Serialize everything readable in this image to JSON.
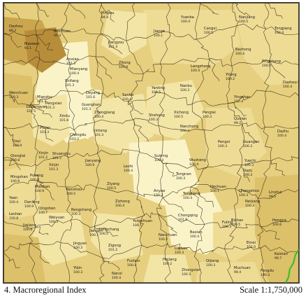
{
  "footer": {
    "title": "4. Macroregional Index",
    "scale": "Scale 1:1,750,000"
  },
  "colors": {
    "level_1": "#faf3c8",
    "level_2": "#f3e5a6",
    "level_3": "#eedc95",
    "level_4": "#e6cf7e",
    "level_5": "#dcc06a",
    "level_6": "#caa64e",
    "level_7": "#b88d3a",
    "boundary": "#3a2f1a",
    "river_accent": "#3bbf2b"
  },
  "counties": [
    {
      "name": "Dezhou",
      "value": "88.2"
    },
    {
      "name": "Beichuan",
      "value": "95.3"
    },
    {
      "name": "Maowen",
      "value": "93.1"
    },
    {
      "name": "Pingwu",
      "value": "94.8"
    },
    {
      "name": "Jiangyou",
      "value": "101.3"
    },
    {
      "name": "Anxian",
      "value": "101.3"
    },
    {
      "name": "Mianyang",
      "value": "100.4"
    },
    {
      "name": "Zitong",
      "value": "100.9"
    },
    {
      "name": "Jiange",
      "value": "100.1"
    },
    {
      "name": "Yuanba",
      "value": "100.4"
    },
    {
      "name": "Cangxi",
      "value": "100.5"
    },
    {
      "name": "Nanjiang",
      "value": "100.5"
    },
    {
      "name": "Tongjiang",
      "value": "100.4"
    },
    {
      "name": "Bazhong",
      "value": "100.4"
    },
    {
      "name": "Pingchang",
      "value": "100.4"
    },
    {
      "name": "Langzhong",
      "value": "100.4"
    },
    {
      "name": "Yilong",
      "value": "100.2"
    },
    {
      "name": "Dazhou-S",
      "value": "100.4"
    },
    {
      "name": "Wenchuan",
      "value": "100.3"
    },
    {
      "name": "Deyang",
      "value": "101.6"
    },
    {
      "name": "Shifang",
      "value": "101.3"
    },
    {
      "name": "Mianzhu",
      "value": "101.3"
    },
    {
      "name": "Guanghan",
      "value": "101.3"
    },
    {
      "name": "Santai",
      "value": "100.4"
    },
    {
      "name": "Yanting",
      "value": "100.5"
    },
    {
      "name": "Nanbu",
      "value": "100.3"
    },
    {
      "name": "Yingshan",
      "value": "100.4"
    },
    {
      "name": "Dujiangyan",
      "value": "101.5"
    },
    {
      "name": "Pengxian",
      "value": "101.3"
    },
    {
      "name": "Xindu",
      "value": "101.8"
    },
    {
      "name": "Zhongjiang",
      "value": "100.4"
    },
    {
      "name": "Shehong",
      "value": "100.3"
    },
    {
      "name": "Xichong",
      "value": "100.5"
    },
    {
      "name": "Penglai",
      "value": "100.3"
    },
    {
      "name": "Quxian",
      "value": "99.2"
    },
    {
      "name": "Chengdu",
      "value": "103.2"
    },
    {
      "name": "Pixian",
      "value": "101.3"
    },
    {
      "name": "Nanchong",
      "value": "100.3"
    },
    {
      "name": "Pengxi",
      "value": "100.3"
    },
    {
      "name": "Guangan",
      "value": "100.3"
    },
    {
      "name": "Dazhu",
      "value": "100.4"
    },
    {
      "name": "Dayi",
      "value": "100.9"
    },
    {
      "name": "Jintang",
      "value": "101.3"
    },
    {
      "name": "Wusheng",
      "value": "100.4"
    },
    {
      "name": "Yuechi",
      "value": "100.3"
    },
    {
      "name": "Qionglai",
      "value": "100.8"
    },
    {
      "name": "Xinjin",
      "value": "101.2"
    },
    {
      "name": "Shuangliu",
      "value": "101.2"
    },
    {
      "name": "Jianyang",
      "value": "100.9"
    },
    {
      "name": "Lezhi",
      "value": "100.4"
    },
    {
      "name": "Suining",
      "value": "100.3"
    },
    {
      "name": "Tongnan",
      "value": "100.3"
    },
    {
      "name": "Hechuan",
      "value": "100.1"
    },
    {
      "name": "Mingshan",
      "value": "100.6"
    },
    {
      "name": "Pujiang",
      "value": "100.8"
    },
    {
      "name": "Xinjin",
      "value": "101.3"
    },
    {
      "name": "Meishan",
      "value": "100.9"
    },
    {
      "name": "Renshou",
      "value": "100.5"
    },
    {
      "name": "Ziyang",
      "value": "100.5"
    },
    {
      "name": "Anyue",
      "value": "100.3"
    },
    {
      "name": "Dazu",
      "value": "100.3"
    },
    {
      "name": "Tongliang",
      "value": "100.4"
    },
    {
      "name": "Changshou",
      "value": "100.3"
    },
    {
      "name": "Linshui",
      "value": "99.5"
    },
    {
      "name": "Yaan",
      "value": "100.4"
    },
    {
      "name": "Danleng",
      "value": "100.9"
    },
    {
      "name": "Qingshen",
      "value": "100.7"
    },
    {
      "name": "Neijiang",
      "value": "100.3"
    },
    {
      "name": "Zizhong",
      "value": "100.4"
    },
    {
      "name": "Rongchang",
      "value": "100.3"
    },
    {
      "name": "Bishan",
      "value": "100.5"
    },
    {
      "name": "Chongqing",
      "value": "101.9"
    },
    {
      "name": "Fuling",
      "value": "100.3"
    },
    {
      "name": "Hongya",
      "value": "100.6"
    },
    {
      "name": "Leshan",
      "value": "100.8"
    },
    {
      "name": "Jiajiang",
      "value": "100.6"
    },
    {
      "name": "Weiyuan",
      "value": "100.3"
    },
    {
      "name": "Longchang",
      "value": "100.2"
    },
    {
      "name": "Yongchuan",
      "value": "100.1"
    },
    {
      "name": "Jiangjin",
      "value": "100.1"
    },
    {
      "name": "Baxian",
      "value": "100.4"
    },
    {
      "name": "Nanchuan",
      "value": "100.2"
    },
    {
      "name": "Emei",
      "value": "101.0"
    },
    {
      "name": "Jingyan",
      "value": "100.3"
    },
    {
      "name": "Zigong",
      "value": "101.2"
    },
    {
      "name": "Fushun",
      "value": "100.4"
    },
    {
      "name": "Luzhou",
      "value": "100.3"
    },
    {
      "name": "Qijiang",
      "value": "100.3"
    },
    {
      "name": "Muchuan",
      "value": "99.4"
    },
    {
      "name": "Yibin",
      "value": "100.3"
    },
    {
      "name": "Nanxi",
      "value": "100.4"
    },
    {
      "name": "Hejiang",
      "value": "100.2"
    },
    {
      "name": "Zhongxian",
      "value": "100.3"
    },
    {
      "name": "Fengdu",
      "value": "100.4"
    },
    {
      "name": "Kaixian",
      "value": "99.7"
    }
  ]
}
